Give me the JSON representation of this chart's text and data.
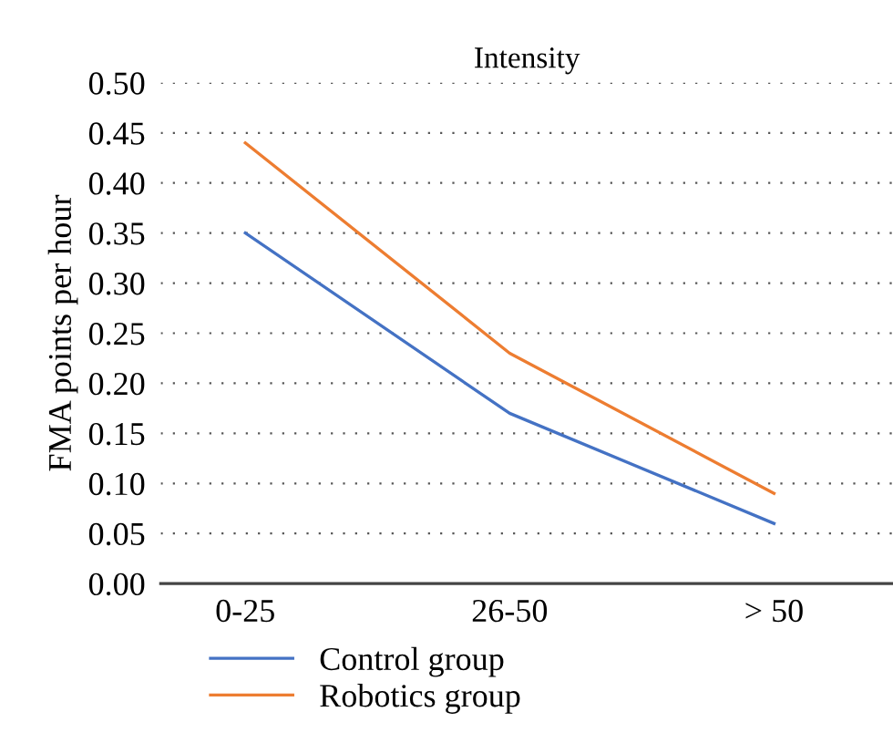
{
  "chart_data": {
    "type": "line",
    "title": "Intensity",
    "ylabel": "FMA points per hour",
    "categories": [
      "0-25",
      "26-50",
      "> 50"
    ],
    "series": [
      {
        "name": "Control group",
        "color": "#4472c4",
        "values": [
          0.35,
          0.17,
          0.06
        ]
      },
      {
        "name": "Robotics group",
        "color": "#ed7d31",
        "values": [
          0.44,
          0.23,
          0.09
        ]
      }
    ],
    "ylim": [
      0,
      0.5
    ],
    "yticks": [
      {
        "value": 0,
        "label": "0.00"
      },
      0.05,
      {
        "value": 0.1,
        "label": "0.10"
      },
      0.15,
      {
        "value": 0.2,
        "label": "0.20"
      },
      0.25,
      {
        "value": 0.3,
        "label": "0.30"
      },
      0.35,
      {
        "value": 0.4,
        "label": "0.40"
      },
      0.45,
      {
        "value": 0.5,
        "label": "0.50"
      }
    ],
    "grid": "y",
    "legend": "bottom",
    "line_style": "solid",
    "marker": "none"
  }
}
